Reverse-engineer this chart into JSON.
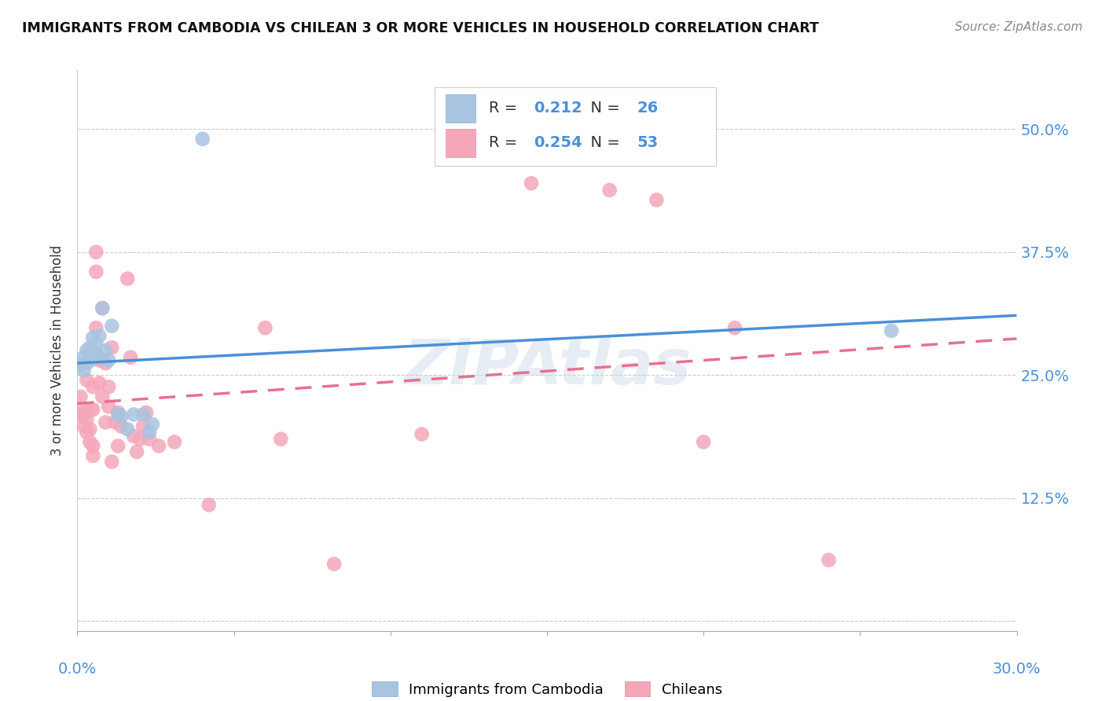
{
  "title": "IMMIGRANTS FROM CAMBODIA VS CHILEAN 3 OR MORE VEHICLES IN HOUSEHOLD CORRELATION CHART",
  "source": "Source: ZipAtlas.com",
  "ylabel": "3 or more Vehicles in Household",
  "ytick_vals": [
    0.0,
    0.125,
    0.25,
    0.375,
    0.5
  ],
  "ytick_labels": [
    "",
    "12.5%",
    "25.0%",
    "37.5%",
    "50.0%"
  ],
  "xlim": [
    0.0,
    0.3
  ],
  "ylim": [
    0.0,
    0.55
  ],
  "plot_ylim": [
    -0.01,
    0.56
  ],
  "watermark": "ZIPAtlas",
  "legend_r_cambodia": "0.212",
  "legend_n_cambodia": "26",
  "legend_r_chilean": "0.254",
  "legend_n_chilean": "53",
  "legend_label_cambodia": "Immigrants from Cambodia",
  "legend_label_chilean": "Chileans",
  "cambodia_color": "#a8c4e0",
  "chilean_color": "#f4a7b9",
  "cambodia_line_color": "#4a90d9",
  "chilean_line_color": "#e87090",
  "cambodia_points": [
    [
      0.001,
      0.26
    ],
    [
      0.002,
      0.268
    ],
    [
      0.002,
      0.255
    ],
    [
      0.003,
      0.275
    ],
    [
      0.003,
      0.262
    ],
    [
      0.004,
      0.265
    ],
    [
      0.004,
      0.278
    ],
    [
      0.005,
      0.288
    ],
    [
      0.005,
      0.27
    ],
    [
      0.006,
      0.272
    ],
    [
      0.006,
      0.282
    ],
    [
      0.007,
      0.29
    ],
    [
      0.007,
      0.268
    ],
    [
      0.008,
      0.318
    ],
    [
      0.009,
      0.275
    ],
    [
      0.01,
      0.265
    ],
    [
      0.011,
      0.3
    ],
    [
      0.013,
      0.21
    ],
    [
      0.014,
      0.208
    ],
    [
      0.016,
      0.195
    ],
    [
      0.018,
      0.21
    ],
    [
      0.021,
      0.21
    ],
    [
      0.023,
      0.192
    ],
    [
      0.024,
      0.2
    ],
    [
      0.26,
      0.295
    ],
    [
      0.04,
      0.49
    ]
  ],
  "chilean_points": [
    [
      0.001,
      0.228
    ],
    [
      0.001,
      0.21
    ],
    [
      0.002,
      0.215
    ],
    [
      0.002,
      0.198
    ],
    [
      0.002,
      0.21
    ],
    [
      0.003,
      0.245
    ],
    [
      0.003,
      0.205
    ],
    [
      0.003,
      0.192
    ],
    [
      0.004,
      0.215
    ],
    [
      0.004,
      0.195
    ],
    [
      0.004,
      0.182
    ],
    [
      0.005,
      0.238
    ],
    [
      0.005,
      0.215
    ],
    [
      0.005,
      0.168
    ],
    [
      0.005,
      0.178
    ],
    [
      0.006,
      0.375
    ],
    [
      0.006,
      0.355
    ],
    [
      0.006,
      0.298
    ],
    [
      0.007,
      0.265
    ],
    [
      0.007,
      0.242
    ],
    [
      0.008,
      0.318
    ],
    [
      0.008,
      0.228
    ],
    [
      0.009,
      0.262
    ],
    [
      0.009,
      0.202
    ],
    [
      0.01,
      0.238
    ],
    [
      0.01,
      0.218
    ],
    [
      0.011,
      0.278
    ],
    [
      0.011,
      0.162
    ],
    [
      0.012,
      0.202
    ],
    [
      0.013,
      0.212
    ],
    [
      0.013,
      0.178
    ],
    [
      0.014,
      0.198
    ],
    [
      0.016,
      0.348
    ],
    [
      0.017,
      0.268
    ],
    [
      0.018,
      0.188
    ],
    [
      0.019,
      0.172
    ],
    [
      0.02,
      0.185
    ],
    [
      0.021,
      0.198
    ],
    [
      0.022,
      0.212
    ],
    [
      0.023,
      0.185
    ],
    [
      0.026,
      0.178
    ],
    [
      0.031,
      0.182
    ],
    [
      0.042,
      0.118
    ],
    [
      0.06,
      0.298
    ],
    [
      0.065,
      0.185
    ],
    [
      0.082,
      0.058
    ],
    [
      0.11,
      0.19
    ],
    [
      0.145,
      0.445
    ],
    [
      0.17,
      0.438
    ],
    [
      0.185,
      0.428
    ],
    [
      0.2,
      0.182
    ],
    [
      0.21,
      0.298
    ],
    [
      0.24,
      0.062
    ]
  ]
}
